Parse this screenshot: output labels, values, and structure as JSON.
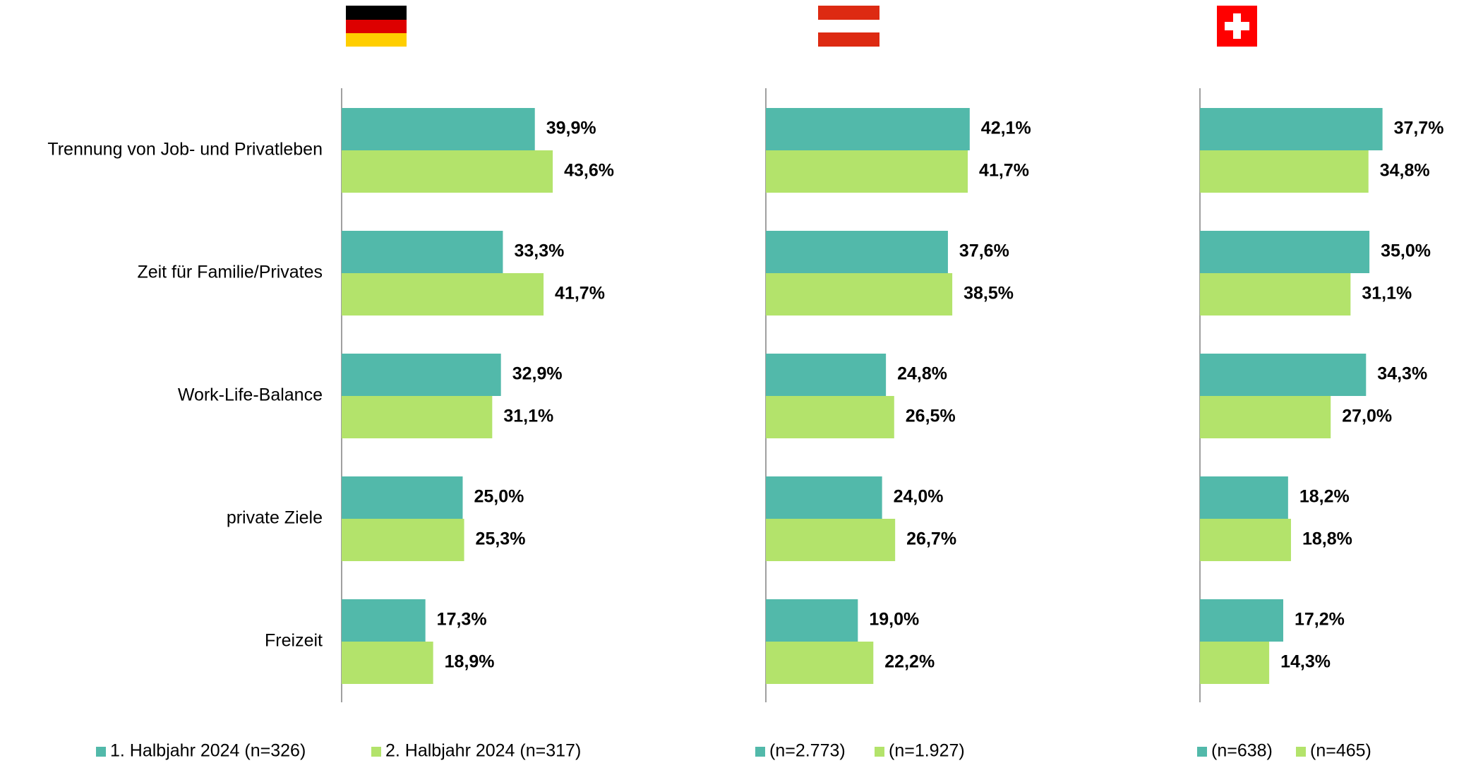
{
  "chart_data": [
    {
      "type": "bar",
      "orientation": "horizontal",
      "categories": [
        "Trennung von Job- und Privatleben",
        "Zeit für Familie/Privates",
        "Work-Life-Balance",
        "private Ziele",
        "Freizeit"
      ],
      "series": [
        {
          "name": "1. Halbjahr 2024 (n=326)",
          "color": "#52b9aa",
          "values": [
            39.9,
            33.3,
            32.9,
            25.0,
            17.3
          ],
          "value_labels": [
            "39,9%",
            "33,3%",
            "32,9%",
            "25,0%",
            "17,3%"
          ]
        },
        {
          "name": "2. Halbjahr 2024 (n=317)",
          "color": "#b3e36b",
          "values": [
            43.6,
            41.7,
            31.1,
            25.3,
            18.9
          ],
          "value_labels": [
            "43,6%",
            "41,7%",
            "31,1%",
            "25,3%",
            "18,9%"
          ]
        }
      ]
    },
    {
      "type": "bar",
      "orientation": "horizontal",
      "series": [
        {
          "name": "(n=2.773)",
          "color": "#52b9aa",
          "values": [
            42.1,
            37.6,
            24.8,
            24.0,
            19.0
          ],
          "value_labels": [
            "42,1%",
            "37,6%",
            "24,8%",
            "24,0%",
            "19,0%"
          ]
        },
        {
          "name": "(n=1.927)",
          "color": "#b3e36b",
          "values": [
            41.7,
            38.5,
            26.5,
            26.7,
            22.2
          ],
          "value_labels": [
            "41,7%",
            "38,5%",
            "26,5%",
            "26,7%",
            "22,2%"
          ]
        }
      ]
    },
    {
      "type": "bar",
      "orientation": "horizontal",
      "series": [
        {
          "name": "(n=638)",
          "color": "#52b9aa",
          "values": [
            37.7,
            35.0,
            34.3,
            18.2,
            17.2
          ],
          "value_labels": [
            "37,7%",
            "35,0%",
            "34,3%",
            "18,2%",
            "17,2%"
          ]
        },
        {
          "name": "(n=465)",
          "color": "#b3e36b",
          "values": [
            34.8,
            31.1,
            27.0,
            18.8,
            14.3
          ],
          "value_labels": [
            "34,8%",
            "31,1%",
            "27,0%",
            "18,8%",
            "14,3%"
          ]
        }
      ]
    }
  ]
}
